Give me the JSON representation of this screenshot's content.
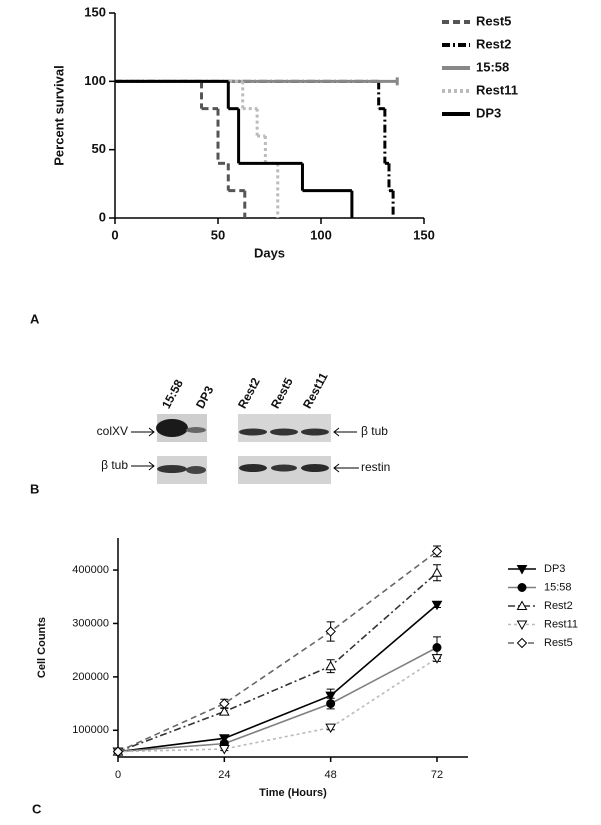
{
  "chart_data": [
    {
      "type": "step",
      "xlabel": "Days",
      "ylabel": "Percent survival",
      "xlim": [
        0,
        150
      ],
      "ylim": [
        0,
        150
      ],
      "xticks": [
        0,
        50,
        100,
        150
      ],
      "yticks": [
        0,
        50,
        100,
        150
      ],
      "series": [
        {
          "name": "Rest5",
          "color": "#555555",
          "dash": "7,4",
          "x": [
            0,
            42,
            50,
            55,
            63
          ],
          "values": [
            100,
            80,
            40,
            20,
            0
          ]
        },
        {
          "name": "Rest2",
          "color": "#000000",
          "dash": "8,3,2,3",
          "x": [
            0,
            128,
            131,
            133,
            135
          ],
          "values": [
            100,
            80,
            40,
            20,
            0
          ]
        },
        {
          "name": "15:58",
          "color": "#888888",
          "dash": "",
          "x": [
            0,
            137
          ],
          "values": [
            100,
            100
          ]
        },
        {
          "name": "Rest11",
          "color": "#bbbbbb",
          "dash": "3,3",
          "x": [
            0,
            62,
            69,
            73,
            79
          ],
          "values": [
            100,
            80,
            60,
            40,
            0
          ]
        },
        {
          "name": "DP3",
          "color": "#000000",
          "dash": "",
          "x": [
            0,
            55,
            60,
            91,
            115
          ],
          "values": [
            100,
            80,
            40,
            20,
            0
          ]
        }
      ]
    },
    {
      "type": "line",
      "xlabel": "Time (Hours)",
      "ylabel": "Cell Counts",
      "x": [
        0,
        24,
        48,
        72
      ],
      "xlim": [
        0,
        79
      ],
      "ylim": [
        50000,
        460000
      ],
      "xticks": [
        0,
        24,
        48,
        72
      ],
      "yticks": [
        100000,
        200000,
        300000,
        400000
      ],
      "series": [
        {
          "name": "DP3",
          "color": "#000000",
          "dash": "",
          "marker": "triangle-down",
          "filled": true,
          "values": [
            60000,
            85000,
            165000,
            335000
          ],
          "errors": [
            0,
            5000,
            12000,
            5000
          ]
        },
        {
          "name": "15:58",
          "color": "#808080",
          "dash": "",
          "marker": "circle",
          "filled": true,
          "values": [
            60000,
            75000,
            150000,
            255000
          ],
          "errors": [
            0,
            4000,
            10000,
            20000
          ]
        },
        {
          "name": "Rest2",
          "color": "#333333",
          "dash": "7,3,2,3",
          "marker": "triangle-up",
          "filled": false,
          "values": [
            60000,
            135000,
            220000,
            395000
          ],
          "errors": [
            0,
            6000,
            12000,
            15000
          ]
        },
        {
          "name": "Rest11",
          "color": "#bbbbbb",
          "dash": "3,3",
          "marker": "triangle-down",
          "filled": false,
          "values": [
            60000,
            65000,
            105000,
            235000
          ],
          "errors": [
            0,
            3000,
            4000,
            6000
          ]
        },
        {
          "name": "Rest5",
          "color": "#666666",
          "dash": "6,4",
          "marker": "diamond",
          "filled": false,
          "values": [
            60000,
            150000,
            285000,
            435000
          ],
          "errors": [
            0,
            8000,
            18000,
            10000
          ]
        }
      ]
    }
  ],
  "blot": {
    "lanes": [
      "15:58",
      "DP3",
      "Rest2",
      "Rest5",
      "Rest11"
    ],
    "left_labels": [
      "colXV",
      "β tub"
    ],
    "right_labels": [
      "β tub",
      "restin"
    ]
  },
  "panel_labels": [
    "A",
    "B",
    "C"
  ]
}
